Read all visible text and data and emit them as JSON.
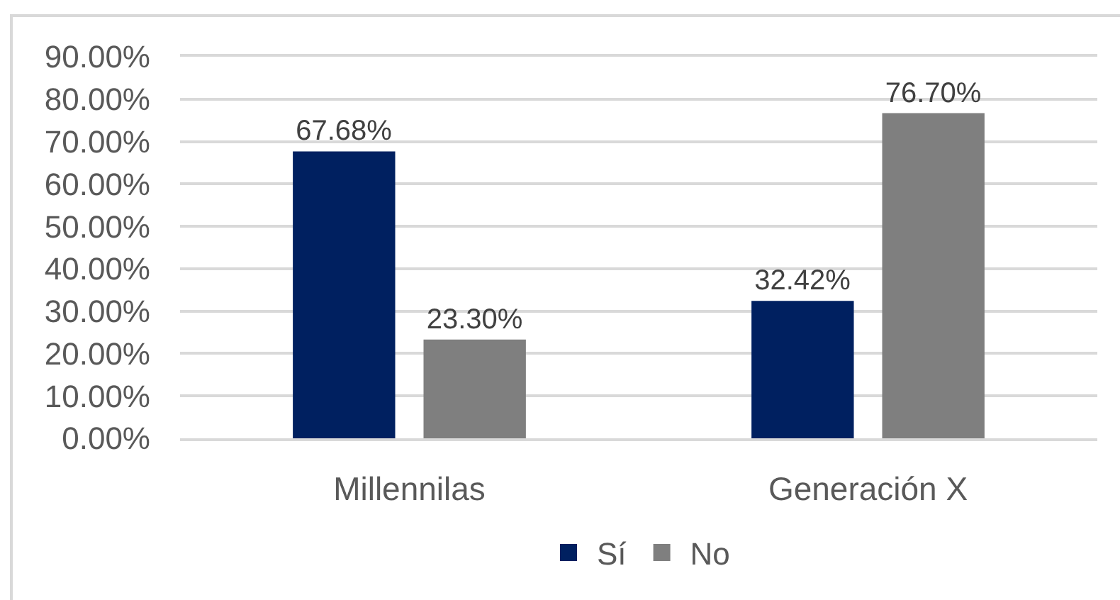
{
  "chart_data": {
    "type": "bar",
    "categories": [
      "Millennilas",
      "Generación X"
    ],
    "series": [
      {
        "name": "Sí",
        "color": "#002060",
        "values": [
          67.68,
          32.42
        ],
        "value_labels": [
          "67.68%",
          "32.42%"
        ]
      },
      {
        "name": "No",
        "color": "#7f7f7f",
        "values": [
          23.3,
          76.7
        ],
        "value_labels": [
          "23.30%",
          "76.70%"
        ]
      }
    ],
    "ylim": [
      0,
      90
    ],
    "yticks": [
      {
        "value": 0,
        "label": "0.00%"
      },
      {
        "value": 10,
        "label": "10.00%"
      },
      {
        "value": 20,
        "label": "20.00%"
      },
      {
        "value": 30,
        "label": "30.00%"
      },
      {
        "value": 40,
        "label": "40.00%"
      },
      {
        "value": 50,
        "label": "50.00%"
      },
      {
        "value": 60,
        "label": "60.00%"
      },
      {
        "value": 70,
        "label": "70.00%"
      },
      {
        "value": 80,
        "label": "80.00%"
      },
      {
        "value": 90,
        "label": "90.00%"
      }
    ],
    "grid": "y",
    "legend": "bottom"
  }
}
